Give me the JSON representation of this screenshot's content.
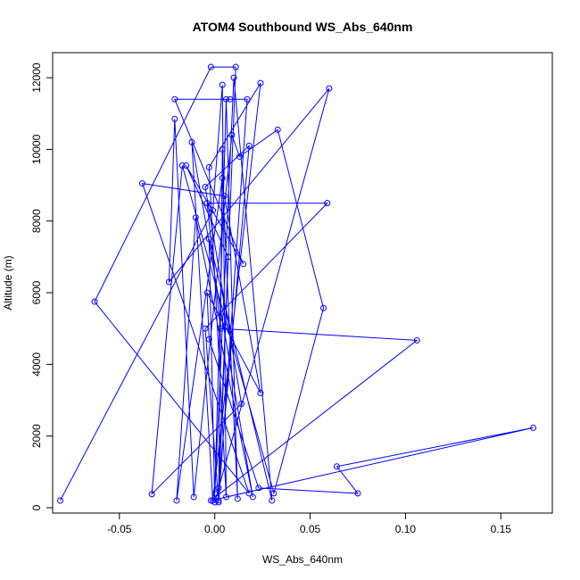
{
  "chart_data": {
    "type": "line",
    "title": "ATOM4 Southbound WS_Abs_640nm",
    "xlabel": "WS_Abs_640nm",
    "ylabel": "Altitude (m)",
    "xlim": [
      -0.085,
      0.177
    ],
    "ylim": [
      -150,
      12700
    ],
    "xticks": [
      -0.05,
      0.0,
      0.05,
      0.1,
      0.15
    ],
    "xtick_labels": [
      "-0.05",
      "0.00",
      "0.05",
      "0.10",
      "0.15"
    ],
    "yticks": [
      0,
      2000,
      4000,
      6000,
      8000,
      10000,
      12000
    ],
    "ytick_labels": [
      "0",
      "2000",
      "4000",
      "6000",
      "8000",
      "10000",
      "12000"
    ],
    "grid": false,
    "series": [
      {
        "color": "#0000ff",
        "marker": "open-circle",
        "points": [
          [
            -0.081,
            200
          ],
          [
            -0.001,
            8300
          ],
          [
            0.004,
            11800
          ],
          [
            0.006,
            300
          ],
          [
            -0.003,
            9500
          ],
          [
            0.024,
            11850
          ],
          [
            -0.001,
            200
          ],
          [
            -0.012,
            10200
          ],
          [
            0.02,
            300
          ],
          [
            -0.01,
            8100
          ],
          [
            -0.02,
            200
          ],
          [
            0.004,
            9200
          ],
          [
            0.012,
            250
          ],
          [
            0.006,
            11400
          ],
          [
            0.0,
            400
          ],
          [
            0.01,
            12000
          ],
          [
            0.03,
            200
          ],
          [
            -0.003,
            7500
          ],
          [
            0.0,
            150
          ],
          [
            0.06,
            11700
          ],
          [
            -0.024,
            6300
          ],
          [
            -0.021,
            10850
          ],
          [
            -0.011,
            300
          ],
          [
            0.009,
            10400
          ],
          [
            0.013,
            9800
          ],
          [
            0.033,
            10550
          ],
          [
            0.057,
            5570
          ],
          [
            0.031,
            400
          ],
          [
            -0.017,
            9550
          ],
          [
            -0.033,
            380
          ],
          [
            0.014,
            2900
          ],
          [
            -0.005,
            8950
          ],
          [
            0.018,
            10100
          ],
          [
            0.002,
            550
          ],
          [
            0.007,
            7000
          ],
          [
            -0.015,
            9550
          ],
          [
            0.015,
            6800
          ],
          [
            -0.021,
            11400
          ],
          [
            0.008,
            11400
          ],
          [
            0.017,
            11400
          ],
          [
            0.002,
            150
          ],
          [
            -0.005,
            5000
          ],
          [
            0.059,
            8500
          ],
          [
            -0.004,
            8500
          ],
          [
            0.003,
            5000
          ],
          [
            0.106,
            4670
          ],
          [
            -0.002,
            200
          ],
          [
            0.167,
            2230
          ],
          [
            0.064,
            1150
          ],
          [
            0.075,
            400
          ],
          [
            0.023,
            550
          ],
          [
            -0.003,
            4700
          ],
          [
            -0.004,
            6000
          ],
          [
            0.024,
            3200
          ],
          [
            0.005,
            8700
          ],
          [
            -0.038,
            9050
          ],
          [
            0.018,
            400
          ],
          [
            -0.063,
            5750
          ],
          [
            -0.002,
            12300
          ],
          [
            0.011,
            12300
          ],
          [
            0.002,
            200
          ],
          [
            0.004,
            10000
          ]
        ]
      }
    ]
  }
}
